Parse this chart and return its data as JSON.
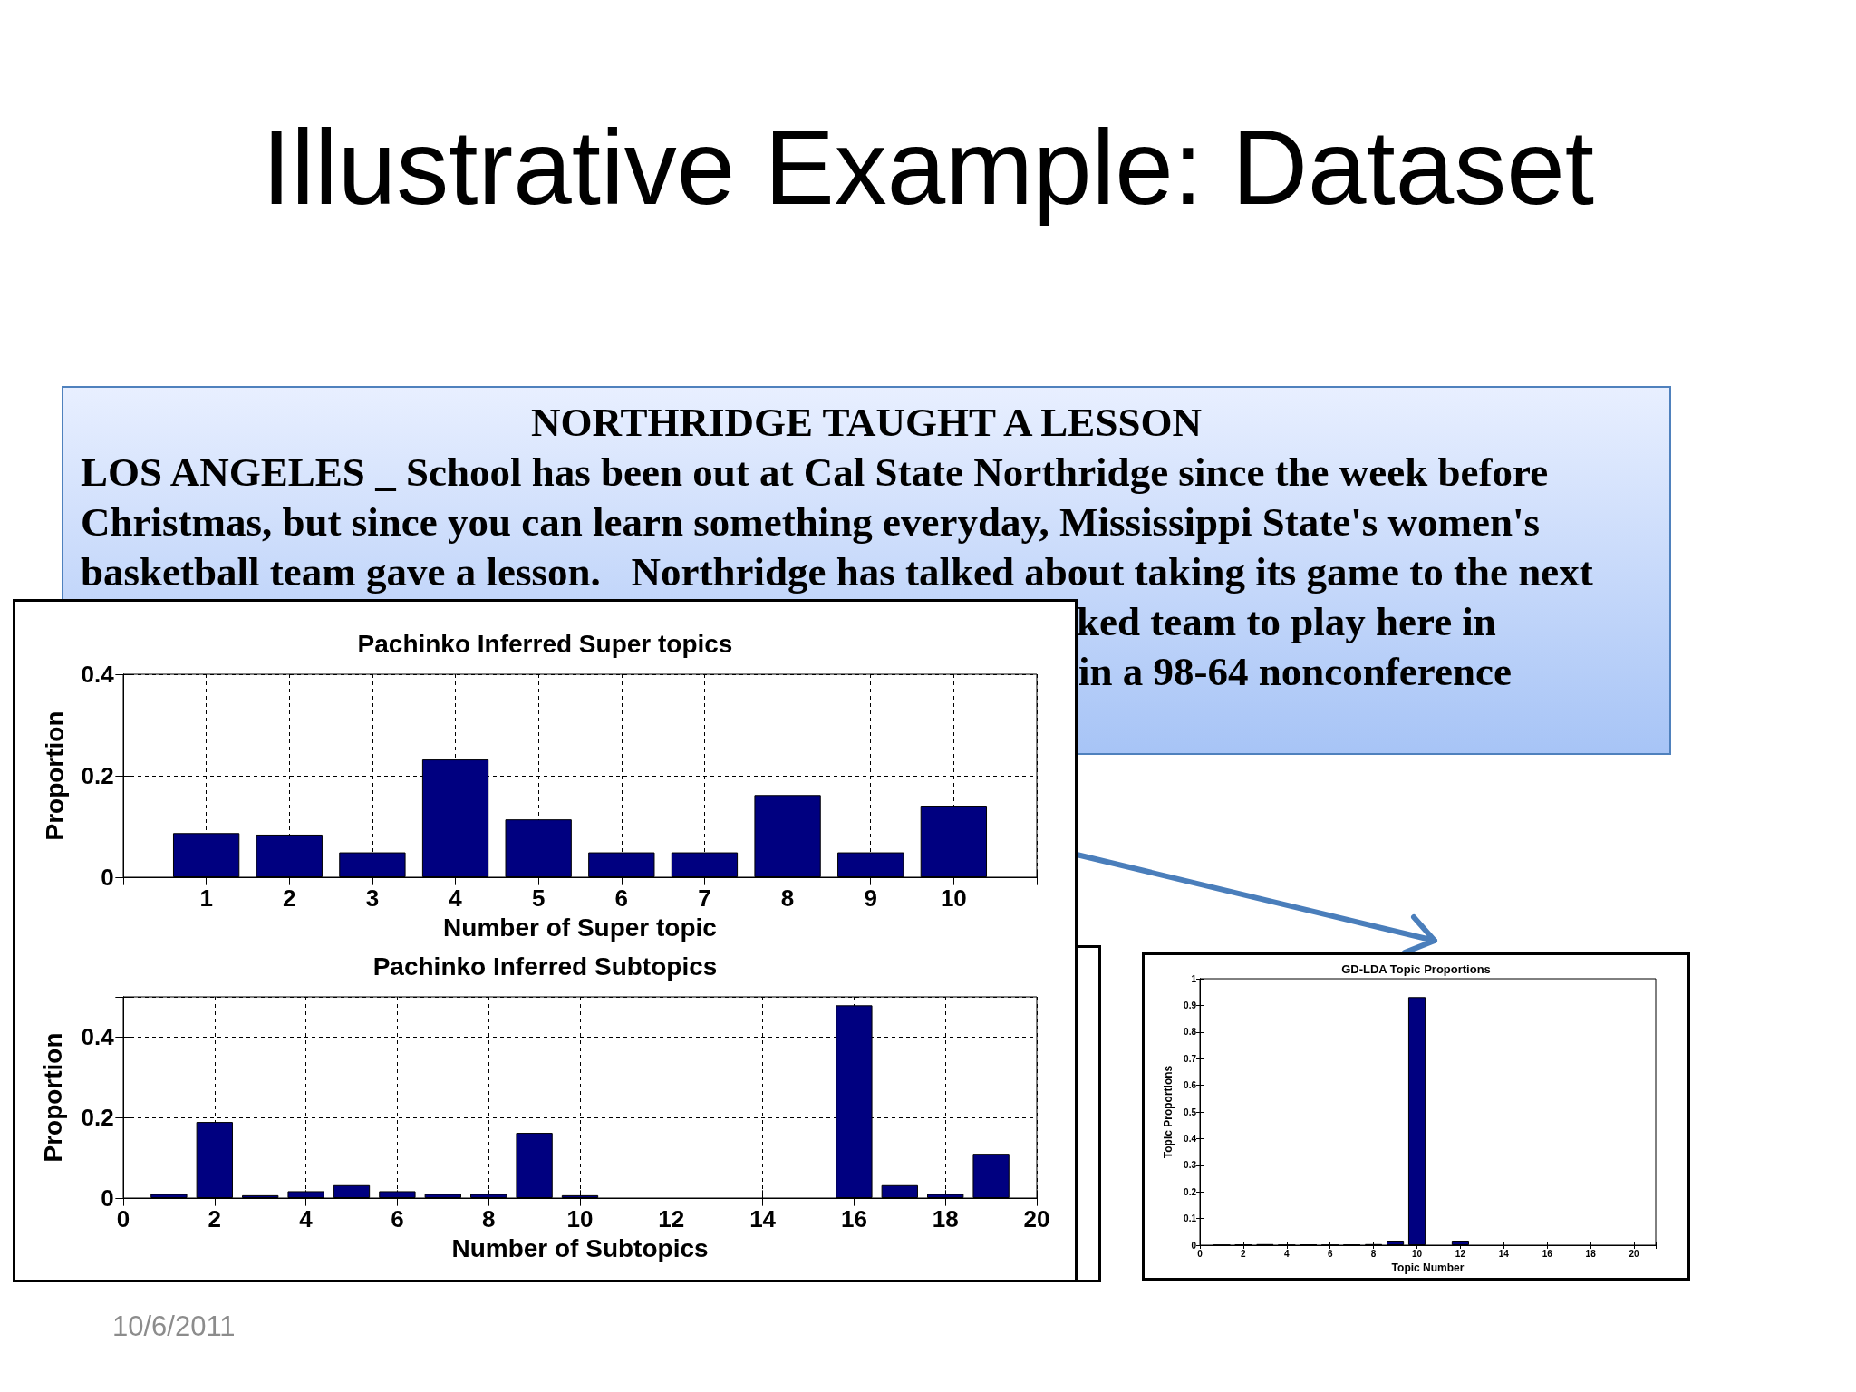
{
  "chart_data": [
    {
      "type": "other",
      "title": "Illustrative Example: Dataset",
      "annotations": [
        "NORTHRIDGE TAUGHT A LESSON",
        "LOS ANGELES _ School has been out at Cal State Northridge since the week before",
        "Christmas, but since you can learn something everyday, Mississippi State's women's",
        "basketball team gave a lesson.   Northridge has talked about taking its game to the next",
        "ked team to play here in",
        "in a 98-64 nonconference",
        "10/6/2011"
      ]
    },
    {
      "type": "bar",
      "title": "Pachinko Inferred Super topics",
      "xlabel": "Number of Super topic",
      "ylabel": "Proportion",
      "x": [
        1,
        2,
        3,
        4,
        5,
        6,
        7,
        8,
        9,
        10
      ],
      "values": [
        0.087,
        0.084,
        0.049,
        0.232,
        0.114,
        0.049,
        0.049,
        0.162,
        0.049,
        0.141
      ],
      "color": "#000080",
      "xlim": [
        0,
        11
      ],
      "xticks": [
        1,
        2,
        3,
        4,
        5,
        6,
        7,
        8,
        9,
        10
      ],
      "ylim": [
        0,
        0.4
      ],
      "yticks": [
        0,
        0.2,
        0.4
      ],
      "grid": true
    },
    {
      "type": "bar",
      "title": "Pachinko Inferred Subtopics",
      "xlabel": "Number of Subtopics",
      "ylabel": "Proportion",
      "x": [
        1,
        2,
        3,
        4,
        5,
        6,
        7,
        8,
        9,
        10,
        11,
        12,
        13,
        14,
        15,
        16,
        17,
        18,
        19
      ],
      "values": [
        0.01,
        0.189,
        0.007,
        0.017,
        0.032,
        0.017,
        0.01,
        0.01,
        0.162,
        0.007,
        null,
        null,
        null,
        null,
        null,
        0.479,
        0.032,
        0.01,
        0.11
      ],
      "color": "#000080",
      "xlim": [
        0,
        20
      ],
      "xticks": [
        0,
        2,
        4,
        6,
        8,
        10,
        12,
        14,
        16,
        18,
        20
      ],
      "ylim": [
        0,
        0.5
      ],
      "yticks": [
        0,
        0.2,
        0.4
      ],
      "grid": true
    },
    {
      "type": "bar",
      "title": "GD-LDA Topic Proportions",
      "xlabel": "Topic Number",
      "ylabel": "Topic Proportions",
      "x": [
        1,
        2,
        3,
        4,
        5,
        6,
        7,
        8,
        9,
        10,
        11,
        12
      ],
      "values": [
        0.001,
        0.003,
        0.004,
        0.001,
        0.003,
        0.001,
        0.002,
        0.004,
        0.017,
        0.931,
        null,
        0.017
      ],
      "color": "#000080",
      "xlim": [
        0,
        21
      ],
      "xticks": [
        0,
        2,
        4,
        6,
        8,
        10,
        12,
        14,
        16,
        18,
        20
      ],
      "ylim": [
        0,
        1
      ],
      "yticks": [
        0,
        0.1,
        0.2,
        0.3,
        0.4,
        0.5,
        0.6,
        0.7,
        0.8,
        0.9,
        1
      ]
    }
  ]
}
